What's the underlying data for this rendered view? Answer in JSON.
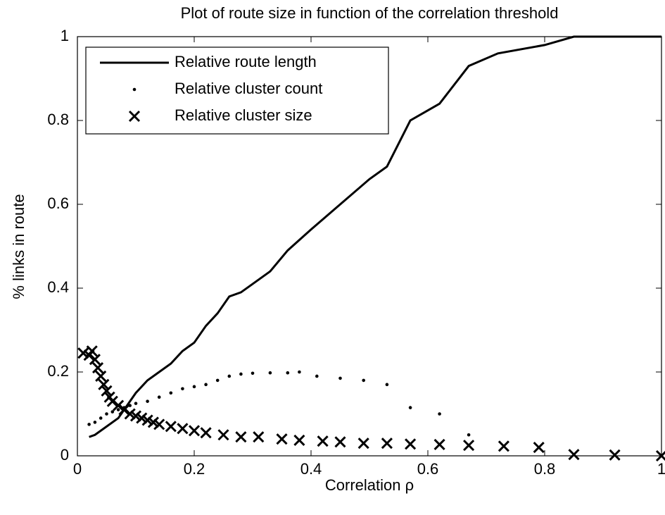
{
  "chart_data": {
    "type": "line",
    "title": "Plot of route size in function of the correlation threshold",
    "x_label": "Correlation ρ",
    "y_label": "% links in route",
    "xlim": [
      0,
      1
    ],
    "ylim": [
      0,
      1
    ],
    "xticks": [
      0,
      0.2,
      0.4,
      0.6,
      0.8,
      1
    ],
    "yticks": [
      0,
      0.2,
      0.4,
      0.6,
      0.8,
      1
    ],
    "grid": false,
    "legend": "upper-left",
    "series": [
      {
        "name": "Relative route length",
        "color": "#000000",
        "style": "line",
        "x": [
          0.02,
          0.03,
          0.05,
          0.07,
          0.09,
          0.1,
          0.12,
          0.14,
          0.16,
          0.18,
          0.2,
          0.22,
          0.24,
          0.26,
          0.28,
          0.3,
          0.33,
          0.36,
          0.4,
          0.45,
          0.5,
          0.53,
          0.57,
          0.62,
          0.67,
          0.72,
          0.8,
          0.85,
          1.0
        ],
        "values": [
          0.045,
          0.05,
          0.07,
          0.09,
          0.13,
          0.15,
          0.18,
          0.2,
          0.22,
          0.25,
          0.27,
          0.31,
          0.34,
          0.38,
          0.39,
          0.41,
          0.44,
          0.49,
          0.54,
          0.6,
          0.66,
          0.69,
          0.8,
          0.84,
          0.93,
          0.96,
          0.98,
          1.0,
          1.0
        ]
      },
      {
        "name": "Relative cluster count",
        "color": "#000000",
        "style": "dot",
        "x": [
          0.02,
          0.03,
          0.04,
          0.05,
          0.06,
          0.07,
          0.08,
          0.09,
          0.1,
          0.12,
          0.14,
          0.16,
          0.18,
          0.2,
          0.22,
          0.24,
          0.26,
          0.28,
          0.3,
          0.33,
          0.36,
          0.38,
          0.41,
          0.45,
          0.49,
          0.53,
          0.57,
          0.62,
          0.67
        ],
        "values": [
          0.075,
          0.08,
          0.09,
          0.1,
          0.105,
          0.11,
          0.115,
          0.12,
          0.125,
          0.13,
          0.14,
          0.15,
          0.16,
          0.165,
          0.17,
          0.18,
          0.19,
          0.195,
          0.197,
          0.198,
          0.198,
          0.2,
          0.19,
          0.185,
          0.18,
          0.17,
          0.115,
          0.1,
          0.05
        ]
      },
      {
        "name": "Relative cluster size",
        "color": "#000000",
        "style": "cross",
        "x": [
          0.01,
          0.02,
          0.025,
          0.03,
          0.035,
          0.04,
          0.045,
          0.05,
          0.055,
          0.06,
          0.07,
          0.08,
          0.09,
          0.1,
          0.11,
          0.12,
          0.13,
          0.14,
          0.16,
          0.18,
          0.2,
          0.22,
          0.25,
          0.28,
          0.31,
          0.35,
          0.38,
          0.42,
          0.45,
          0.49,
          0.53,
          0.57,
          0.62,
          0.67,
          0.73,
          0.79,
          0.85,
          0.92,
          1.0
        ],
        "values": [
          0.245,
          0.24,
          0.25,
          0.23,
          0.21,
          0.19,
          0.17,
          0.155,
          0.14,
          0.13,
          0.12,
          0.11,
          0.1,
          0.095,
          0.09,
          0.085,
          0.08,
          0.075,
          0.07,
          0.065,
          0.06,
          0.055,
          0.05,
          0.045,
          0.045,
          0.04,
          0.037,
          0.035,
          0.033,
          0.03,
          0.03,
          0.028,
          0.027,
          0.025,
          0.023,
          0.02,
          0.003,
          0.002,
          0.0
        ]
      }
    ]
  }
}
